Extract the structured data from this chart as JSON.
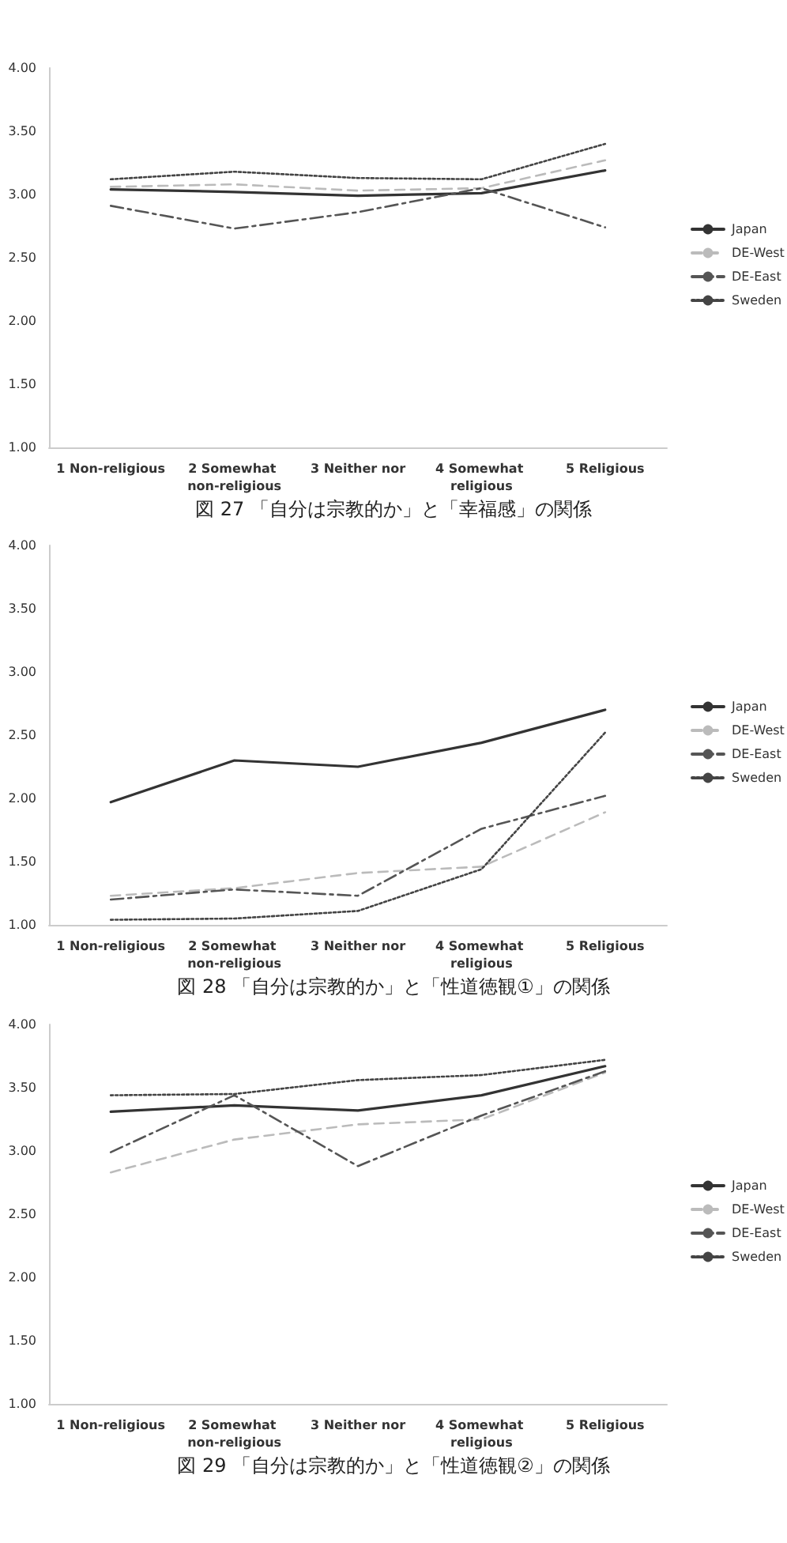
{
  "chart_data": [
    {
      "type": "line",
      "title": "図 27 「自分は宗教的か」と「幸福感」の関係",
      "categories": [
        "1 Non-religious",
        "2 Somewhat non-religious",
        "3 Neither nor",
        "4 Somewhat religious",
        "5 Religious"
      ],
      "series": [
        {
          "name": "Japan",
          "color": "#333333",
          "line_style": "solid",
          "values": [
            3.04,
            3.02,
            2.99,
            3.01,
            3.19
          ]
        },
        {
          "name": "DE-West",
          "color": "#bbbbbb",
          "line_style": "dashed",
          "values": [
            3.06,
            3.08,
            3.03,
            3.05,
            3.27
          ]
        },
        {
          "name": "DE-East",
          "color": "#555555",
          "line_style": "dashdot",
          "values": [
            2.91,
            2.73,
            2.86,
            3.05,
            2.74
          ]
        },
        {
          "name": "Sweden",
          "color": "#444444",
          "line_style": "dotted",
          "values": [
            3.12,
            3.18,
            3.13,
            3.12,
            3.4
          ]
        }
      ],
      "ylim": [
        1,
        4
      ],
      "yticks": [
        {
          "value": 1,
          "label": "1.00"
        },
        {
          "value": 1.5,
          "label": "1.50"
        },
        {
          "value": 2,
          "label": "2.00"
        },
        {
          "value": 2.5,
          "label": "2.50"
        },
        {
          "value": 3,
          "label": "3.00"
        },
        {
          "value": 3.5,
          "label": "3.50"
        },
        {
          "value": 4,
          "label": "4.00"
        }
      ],
      "grid": false,
      "legend": "right",
      "marker": "none"
    },
    {
      "type": "line",
      "title": "図 28 「自分は宗教的か」と「性道徳観①」の関係",
      "categories": [
        "1 Non-religious",
        "2 Somewhat non-religious",
        "3 Neither nor",
        "4 Somewhat religious",
        "5 Religious"
      ],
      "series": [
        {
          "name": "Japan",
          "color": "#333333",
          "line_style": "solid",
          "values": [
            1.97,
            2.3,
            2.25,
            2.44,
            2.7
          ]
        },
        {
          "name": "DE-West",
          "color": "#bbbbbb",
          "line_style": "dashed",
          "values": [
            1.23,
            1.29,
            1.41,
            1.46,
            1.89
          ]
        },
        {
          "name": "DE-East",
          "color": "#555555",
          "line_style": "dashdot",
          "values": [
            1.2,
            1.28,
            1.23,
            1.76,
            2.02
          ]
        },
        {
          "name": "Sweden",
          "color": "#444444",
          "line_style": "dotted",
          "values": [
            1.04,
            1.05,
            1.11,
            1.44,
            2.52
          ]
        }
      ],
      "ylim": [
        1,
        4
      ],
      "yticks": [
        {
          "value": 1,
          "label": "1.00"
        },
        {
          "value": 1.5,
          "label": "1.50"
        },
        {
          "value": 2,
          "label": "2.00"
        },
        {
          "value": 2.5,
          "label": "2.50"
        },
        {
          "value": 3,
          "label": "3.00"
        },
        {
          "value": 3.5,
          "label": "3.50"
        },
        {
          "value": 4,
          "label": "4.00"
        }
      ],
      "grid": false,
      "legend": "right",
      "marker": "none"
    },
    {
      "type": "line",
      "title": "図 29 「自分は宗教的か」と「性道徳観②」の関係",
      "categories": [
        "1 Non-religious",
        "2 Somewhat non-religious",
        "3 Neither nor",
        "4 Somewhat religious",
        "5 Religious"
      ],
      "series": [
        {
          "name": "Japan",
          "color": "#333333",
          "line_style": "solid",
          "values": [
            3.31,
            3.36,
            3.32,
            3.44,
            3.67
          ]
        },
        {
          "name": "DE-West",
          "color": "#bbbbbb",
          "line_style": "dashed",
          "values": [
            2.83,
            3.09,
            3.21,
            3.25,
            3.62
          ]
        },
        {
          "name": "DE-East",
          "color": "#555555",
          "line_style": "dashdot",
          "values": [
            2.99,
            3.44,
            2.88,
            3.28,
            3.63
          ]
        },
        {
          "name": "Sweden",
          "color": "#444444",
          "line_style": "dotted",
          "values": [
            3.44,
            3.45,
            3.56,
            3.6,
            3.72
          ]
        }
      ],
      "ylim": [
        1,
        4
      ],
      "yticks": [
        {
          "value": 1,
          "label": "1.00"
        },
        {
          "value": 1.5,
          "label": "1.50"
        },
        {
          "value": 2,
          "label": "2.00"
        },
        {
          "value": 2.5,
          "label": "2.50"
        },
        {
          "value": 3,
          "label": "3.00"
        },
        {
          "value": 3.5,
          "label": "3.50"
        },
        {
          "value": 4,
          "label": "4.00"
        }
      ],
      "grid": false,
      "legend": "right",
      "marker": "none"
    }
  ]
}
